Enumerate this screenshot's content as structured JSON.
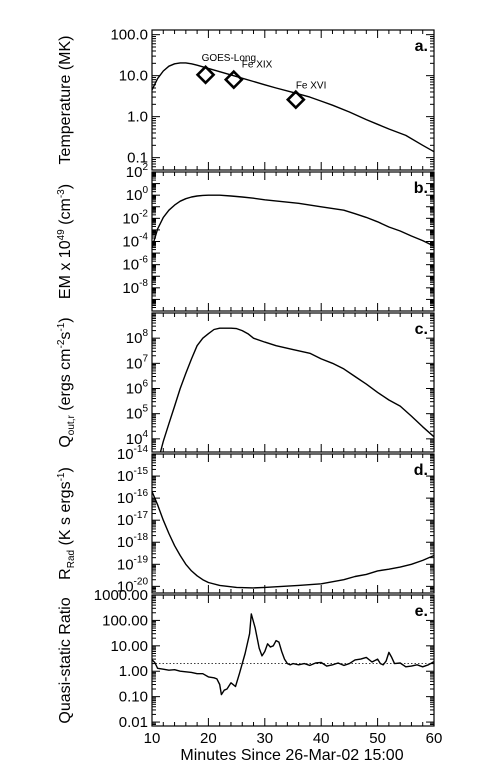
{
  "figure": {
    "xlabel": "Minutes Since 26-Mar-02 15:00",
    "xlim": [
      10,
      60
    ],
    "xticks": [
      10,
      20,
      30,
      40,
      50,
      60
    ]
  },
  "chart_data": [
    {
      "type": "line",
      "panel": "a.",
      "ylabel_parts": [
        {
          "t": "Temperature (MK)",
          "s": "n"
        }
      ],
      "yscale": "log",
      "ylim": [
        0.05,
        130
      ],
      "yticks": [
        {
          "v": 0.1,
          "m": "0.1"
        },
        {
          "v": 1,
          "m": "1.0"
        },
        {
          "v": 10,
          "m": "10.0"
        },
        {
          "v": 100,
          "m": "100.0"
        }
      ],
      "series": [
        {
          "x": [
            10,
            11,
            12,
            13,
            14,
            15,
            16,
            17,
            18,
            20,
            22,
            25,
            28,
            30,
            32,
            35,
            38,
            40,
            42,
            45,
            48,
            50,
            52,
            55,
            58,
            60
          ],
          "values": [
            4.5,
            8.5,
            13,
            17,
            19.5,
            20.5,
            20.5,
            19.5,
            18,
            15,
            12.5,
            9.5,
            7.2,
            6,
            5,
            3.9,
            3,
            2.4,
            1.9,
            1.3,
            0.85,
            0.65,
            0.5,
            0.35,
            0.2,
            0.14
          ]
        }
      ],
      "markers": [
        {
          "x": 19.5,
          "y": 10.5,
          "label": "GOES-Long"
        },
        {
          "x": 24.5,
          "y": 8,
          "label": "Fe XIX"
        },
        {
          "x": 35.5,
          "y": 2.6,
          "label": "Fe XVI"
        }
      ]
    },
    {
      "type": "line",
      "panel": "b.",
      "ylabel_parts": [
        {
          "t": "EM x 10",
          "s": "n"
        },
        {
          "t": "49",
          "s": "sup"
        },
        {
          "t": " (cm",
          "s": "n"
        },
        {
          "t": "-3",
          "s": "sup"
        },
        {
          "t": ")",
          "s": "n"
        }
      ],
      "yscale": "log",
      "ylim": [
        1e-10,
        100
      ],
      "yticks": [
        {
          "v": 100,
          "m": "10",
          "e": "2"
        },
        {
          "v": 1,
          "m": "10",
          "e": "0"
        },
        {
          "v": 0.01,
          "m": "10",
          "e": "-2"
        },
        {
          "v": 0.0001,
          "m": "10",
          "e": "-4"
        },
        {
          "v": 1e-06,
          "m": "10",
          "e": "-6"
        },
        {
          "v": 1e-08,
          "m": "10",
          "e": "-8"
        }
      ],
      "series": [
        {
          "x": [
            10,
            11,
            12,
            13,
            14,
            15,
            16,
            17,
            18,
            19,
            20,
            22,
            24,
            26,
            28,
            30,
            33,
            36,
            40,
            44,
            46,
            48,
            50,
            52,
            54,
            56,
            58,
            60
          ],
          "values": [
            3e-05,
            0.0012,
            0.012,
            0.05,
            0.14,
            0.3,
            0.5,
            0.7,
            0.85,
            0.95,
            1,
            1,
            0.85,
            0.7,
            0.55,
            0.4,
            0.28,
            0.2,
            0.1,
            0.05,
            0.025,
            0.012,
            0.005,
            0.0018,
            0.0008,
            0.0003,
            0.00012,
            4e-05
          ]
        }
      ]
    },
    {
      "type": "line",
      "panel": "c.",
      "ylabel_parts": [
        {
          "t": "Q",
          "s": "n"
        },
        {
          "t": "out,r",
          "s": "sub"
        },
        {
          "t": " (ergs cm",
          "s": "n"
        },
        {
          "t": "-2",
          "s": "sup"
        },
        {
          "t": "s",
          "s": "n"
        },
        {
          "t": "-1",
          "s": "sup"
        },
        {
          "t": ")",
          "s": "n"
        }
      ],
      "yscale": "log",
      "ylim": [
        3000,
        1000000000.0
      ],
      "yticks": [
        {
          "v": 10000,
          "m": "10",
          "e": "4"
        },
        {
          "v": 100000,
          "m": "10",
          "e": "5"
        },
        {
          "v": 1000000,
          "m": "10",
          "e": "6"
        },
        {
          "v": 10000000,
          "m": "10",
          "e": "7"
        },
        {
          "v": 100000000,
          "m": "10",
          "e": "8"
        }
      ],
      "series": [
        {
          "x": [
            11.5,
            12,
            13,
            14,
            15,
            16,
            17,
            18,
            19,
            20,
            21,
            22,
            23,
            24,
            25,
            26,
            27,
            28,
            30,
            32,
            35,
            38,
            40,
            42,
            44,
            46,
            48,
            50,
            52,
            54,
            56,
            58,
            60
          ],
          "values": [
            3000,
            8000,
            40000,
            200000,
            1000000,
            4000000,
            15000000,
            50000000,
            100000000,
            150000000,
            220000000,
            250000000,
            250000000,
            250000000,
            240000000,
            200000000,
            150000000,
            100000000,
            70000000,
            50000000,
            35000000,
            25000000,
            15000000,
            10000000,
            6000000,
            3000000,
            1500000,
            700000,
            350000,
            200000,
            80000,
            30000,
            12000
          ]
        }
      ]
    },
    {
      "type": "line",
      "panel": "d.",
      "ylabel_parts": [
        {
          "t": "R",
          "s": "n"
        },
        {
          "t": "Rad",
          "s": "sub"
        },
        {
          "t": " (K s ergs",
          "s": "n"
        },
        {
          "t": "-1",
          "s": "sup"
        },
        {
          "t": ")",
          "s": "n"
        }
      ],
      "yscale": "log",
      "ylim": [
        5e-21,
        1e-14
      ],
      "yticks": [
        {
          "v": 1e-14,
          "m": "10",
          "e": "-14"
        },
        {
          "v": 1e-15,
          "m": "10",
          "e": "-15"
        },
        {
          "v": 1e-16,
          "m": "10",
          "e": "-16"
        },
        {
          "v": 1e-17,
          "m": "10",
          "e": "-17"
        },
        {
          "v": 1e-18,
          "m": "10",
          "e": "-18"
        },
        {
          "v": 1e-19,
          "m": "10",
          "e": "-19"
        },
        {
          "v": 1e-20,
          "m": "10",
          "e": "-20"
        }
      ],
      "series": [
        {
          "x": [
            10,
            11,
            12,
            13,
            14,
            15,
            16,
            17,
            18,
            19,
            20,
            22,
            25,
            28,
            30,
            33,
            36,
            40,
            44,
            46,
            48,
            50,
            52,
            54,
            56,
            58,
            60
          ],
          "values": [
            2e-16,
            5e-17,
            1e-17,
            2.5e-18,
            7e-19,
            2.5e-19,
            1e-19,
            5e-20,
            3e-20,
            2e-20,
            1.5e-20,
            1.1e-20,
            9e-21,
            8.5e-21,
            9e-21,
            1e-20,
            1.1e-20,
            1.3e-20,
            2e-20,
            2.8e-20,
            3.5e-20,
            5e-20,
            6e-20,
            7.5e-20,
            1e-19,
            1.5e-19,
            2.5e-19
          ]
        }
      ]
    },
    {
      "type": "line",
      "panel": "e.",
      "ylabel_parts": [
        {
          "t": "Quasi-static Ratio",
          "s": "n"
        }
      ],
      "yscale": "log",
      "ylim": [
        0.007,
        1000
      ],
      "yticks": [
        {
          "v": 0.01,
          "m": "0.01"
        },
        {
          "v": 0.1,
          "m": "0.10"
        },
        {
          "v": 1,
          "m": "1.00"
        },
        {
          "v": 10,
          "m": "10.00"
        },
        {
          "v": 100,
          "m": "100.00"
        },
        {
          "v": 1000,
          "m": "1000.00"
        }
      ],
      "reference_line": 2,
      "series": [
        {
          "x": [
            10,
            10.5,
            11,
            12,
            13,
            14,
            15,
            16,
            17,
            18,
            19,
            20,
            21,
            21.5,
            22,
            22.3,
            22.8,
            23.3,
            24,
            24.8,
            25.5,
            26.5,
            27.3,
            27.6,
            28.3,
            29,
            29.5,
            30,
            30.5,
            31,
            31.5,
            32,
            32.5,
            33,
            33.5,
            34,
            34.5,
            35,
            36,
            37,
            38,
            39,
            40,
            41,
            42,
            43,
            44,
            45,
            46,
            47,
            48,
            49,
            50,
            50.5,
            51,
            51.5,
            52,
            52.5,
            53,
            54,
            55,
            56,
            57,
            58,
            59,
            60
          ],
          "values": [
            2.8,
            2.2,
            1.3,
            1.2,
            1.1,
            1.15,
            1,
            0.95,
            0.9,
            0.8,
            0.8,
            0.6,
            0.55,
            0.5,
            0.3,
            0.12,
            0.18,
            0.2,
            0.35,
            0.25,
            0.8,
            5,
            30,
            180,
            50,
            8,
            4,
            6,
            12,
            9,
            10,
            16,
            14,
            6,
            3,
            2,
            1.8,
            2,
            1.8,
            2,
            1.7,
            2.1,
            2.2,
            1.6,
            1.8,
            2.1,
            1.7,
            2,
            2.8,
            3,
            3.5,
            2.3,
            3,
            2,
            1.8,
            2.5,
            5.5,
            3.5,
            2,
            2.1,
            1.5,
            1.6,
            1.8,
            1.5,
            1.8,
            2.4
          ]
        }
      ]
    }
  ]
}
